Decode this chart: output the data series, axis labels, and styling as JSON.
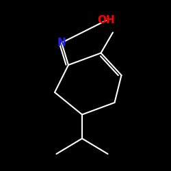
{
  "background_color": "#000000",
  "bond_color": "#ffffff",
  "N_color": "#2222ff",
  "O_color": "#ff0000",
  "font_size_N": 11,
  "font_size_OH": 11,
  "figsize": [
    2.5,
    2.5
  ],
  "dpi": 100,
  "xlim": [
    0,
    10
  ],
  "ylim": [
    0,
    10
  ],
  "lw": 1.5
}
